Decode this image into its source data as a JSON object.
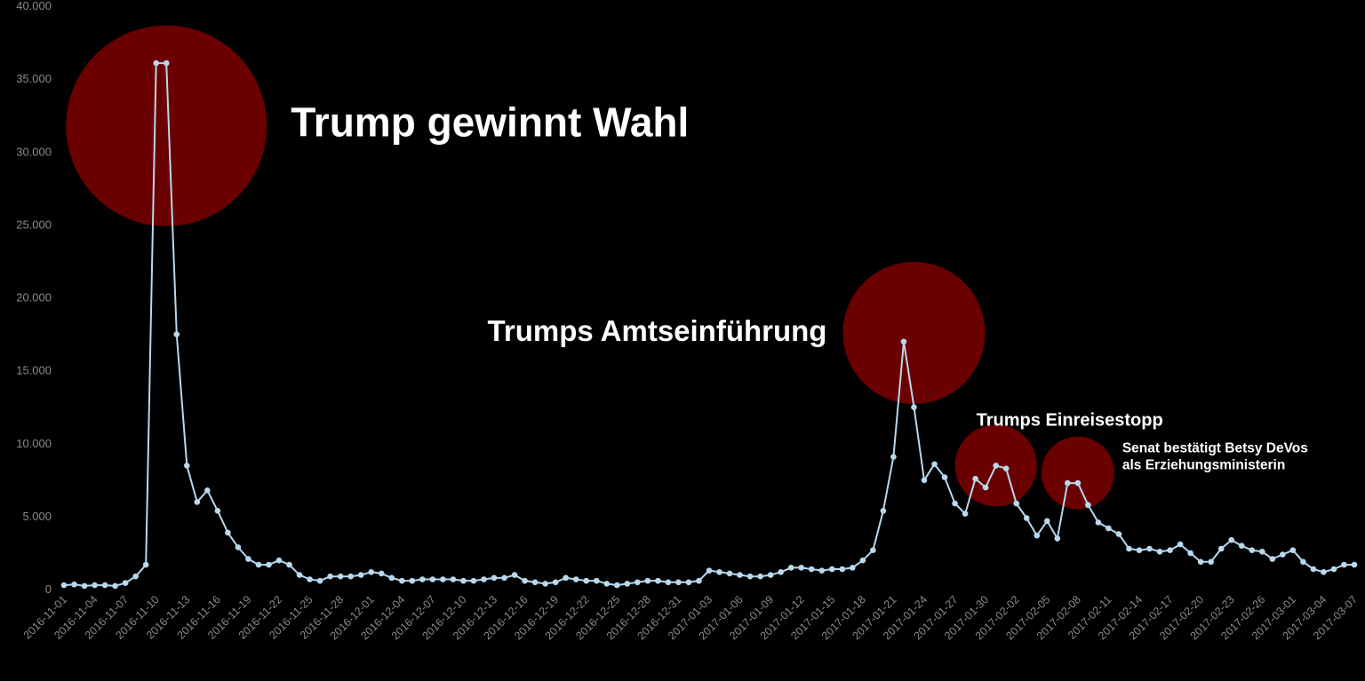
{
  "chart_data": {
    "type": "line",
    "title": "",
    "xlabel": "",
    "ylabel": "",
    "ylim": [
      0,
      40000
    ],
    "y_ticks": [
      "0",
      "5.000",
      "10.000",
      "15.000",
      "20.000",
      "25.000",
      "30.000",
      "35.000",
      "40.000"
    ],
    "x_ticks": [
      "2016-11-01",
      "2016-11-04",
      "2016-11-07",
      "2016-11-10",
      "2016-11-13",
      "2016-11-16",
      "2016-11-19",
      "2016-11-22",
      "2016-11-25",
      "2016-11-28",
      "2016-12-01",
      "2016-12-04",
      "2016-12-07",
      "2016-12-10",
      "2016-12-13",
      "2016-12-16",
      "2016-12-19",
      "2016-12-22",
      "2016-12-25",
      "2016-12-28",
      "2016-12-31",
      "2017-01-03",
      "2017-01-06",
      "2017-01-09",
      "2017-01-12",
      "2017-01-15",
      "2017-01-18",
      "2017-01-21",
      "2017-01-24",
      "2017-01-27",
      "2017-01-30",
      "2017-02-02",
      "2017-02-05",
      "2017-02-08",
      "2017-02-11",
      "2017-02-14",
      "2017-02-17",
      "2017-02-20",
      "2017-02-23",
      "2017-02-26",
      "2017-03-01",
      "2017-03-04",
      "2017-03-07"
    ],
    "grid": false,
    "line_color": "#b8d8ee",
    "highlight_color": "#6b0000",
    "series": [
      {
        "x_start": "2016-11-01",
        "x_step_days": 1,
        "values": [
          300,
          350,
          250,
          300,
          300,
          250,
          450,
          900,
          1700,
          36100,
          36100,
          17500,
          8500,
          6000,
          6800,
          5400,
          3900,
          2900,
          2100,
          1700,
          1700,
          2000,
          1700,
          1000,
          700,
          600,
          900,
          900,
          900,
          1000,
          1200,
          1100,
          800,
          600,
          600,
          700,
          700,
          700,
          700,
          600,
          600,
          700,
          800,
          800,
          1000,
          600,
          500,
          400,
          500,
          800,
          700,
          600,
          600,
          400,
          300,
          400,
          500,
          600,
          600,
          500,
          500,
          500,
          600,
          1300,
          1200,
          1100,
          1000,
          900,
          900,
          1000,
          1200,
          1500,
          1500,
          1400,
          1300,
          1400,
          1400,
          1500,
          2000,
          2700,
          5400,
          9100,
          17000,
          12500,
          7500,
          8600,
          7700,
          5900,
          5200,
          7600,
          7000,
          8500,
          8300,
          5900,
          4900,
          3700,
          4700,
          3500,
          7300,
          7300,
          5800,
          4600,
          4200,
          3800,
          2800,
          2700,
          2800,
          2600,
          2700,
          3100,
          2500,
          1900,
          1900,
          2800,
          3400,
          3000,
          2700,
          2600,
          2100,
          2400,
          2700,
          1900,
          1400,
          1200,
          1400,
          1700,
          1700
        ]
      }
    ],
    "annotations": [
      {
        "label": "Trump gewinnt Wahl",
        "date": "2016-11-11",
        "value": 31800
      },
      {
        "label": "Trumps Amtseinführung",
        "date": "2017-01-23",
        "value": 17600
      },
      {
        "label": "Trumps Einreisestopp",
        "date": "2017-01-31",
        "value": 8500
      },
      {
        "label_lines": [
          "Senat bestätigt Betsy DeVos",
          "als Erziehungsministerin"
        ],
        "date": "2017-02-08",
        "value": 8000
      }
    ]
  }
}
